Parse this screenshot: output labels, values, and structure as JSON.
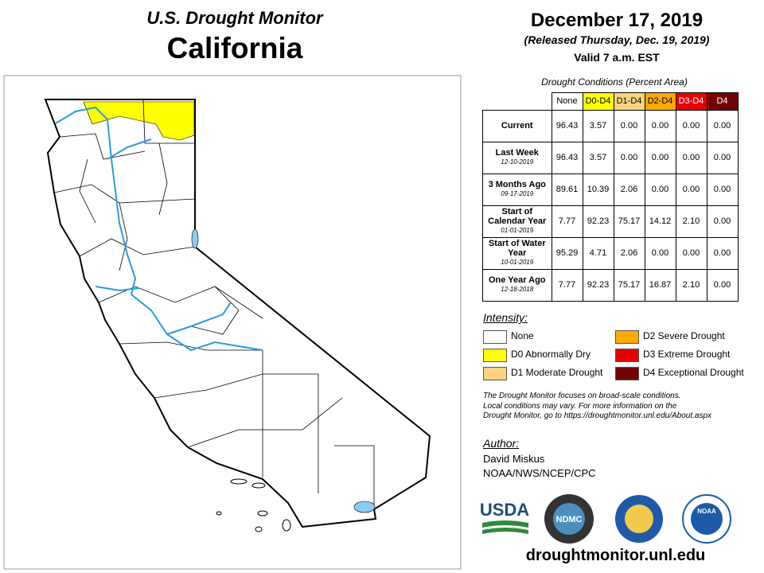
{
  "header": {
    "title": "U.S. Drought Monitor",
    "state": "California"
  },
  "date": {
    "date": "December 17, 2019",
    "released": "(Released Thursday, Dec. 19, 2019)",
    "valid": "Valid 7 a.m. EST"
  },
  "table": {
    "caption": "Drought Conditions (Percent Area)",
    "columns": [
      {
        "label": "None",
        "color": "#ffffff",
        "text_color": "#000000"
      },
      {
        "label": "D0-D4",
        "color": "#ffff00",
        "text_color": "#000000"
      },
      {
        "label": "D1-D4",
        "color": "#fcd37f",
        "text_color": "#000000"
      },
      {
        "label": "D2-D4",
        "color": "#ffaa00",
        "text_color": "#000000"
      },
      {
        "label": "D3-D4",
        "color": "#e60000",
        "text_color": "#ffffff"
      },
      {
        "label": "D4",
        "color": "#730000",
        "text_color": "#ffffff"
      }
    ],
    "rows": [
      {
        "label": "Current",
        "values": [
          "96.43",
          "3.57",
          "0.00",
          "0.00",
          "0.00",
          "0.00"
        ]
      },
      {
        "label": "Last Week",
        "date": "12-10-2019",
        "values": [
          "96.43",
          "3.57",
          "0.00",
          "0.00",
          "0.00",
          "0.00"
        ]
      },
      {
        "label": "3 Months Ago",
        "date": "09-17-2019",
        "values": [
          "89.61",
          "10.39",
          "2.06",
          "0.00",
          "0.00",
          "0.00"
        ]
      },
      {
        "label": "Start of Calendar Year",
        "date": "01-01-2019",
        "values": [
          "7.77",
          "92.23",
          "75.17",
          "14.12",
          "2.10",
          "0.00"
        ]
      },
      {
        "label": "Start of Water Year",
        "date": "10-01-2019",
        "values": [
          "95.29",
          "4.71",
          "2.06",
          "0.00",
          "0.00",
          "0.00"
        ]
      },
      {
        "label": "One Year Ago",
        "date": "12-18-2018",
        "values": [
          "7.77",
          "92.23",
          "75.17",
          "16.87",
          "2.10",
          "0.00"
        ]
      }
    ]
  },
  "legend": {
    "title": "Intensity:",
    "items": [
      {
        "label": "None",
        "color": "#ffffff"
      },
      {
        "label": "D0 Abnormally Dry",
        "color": "#ffff00"
      },
      {
        "label": "D1 Moderate Drought",
        "color": "#fcd37f"
      },
      {
        "label": "D2 Severe Drought",
        "color": "#ffaa00"
      },
      {
        "label": "D3 Extreme Drought",
        "color": "#e60000"
      },
      {
        "label": "D4 Exceptional Drought",
        "color": "#730000"
      }
    ]
  },
  "note": [
    "The Drought Monitor focuses on broad-scale conditions.",
    "Local conditions may vary. For more information on the",
    "Drought Monitor, go to https://droughtmonitor.unl.edu/About.aspx"
  ],
  "author": {
    "title": "Author:",
    "name": "David Miskus",
    "org": "NOAA/NWS/NCEP/CPC"
  },
  "logos": [
    "USDA",
    "NDMC",
    "NOAA"
  ],
  "footer": "droughtmonitor.unl.edu"
}
